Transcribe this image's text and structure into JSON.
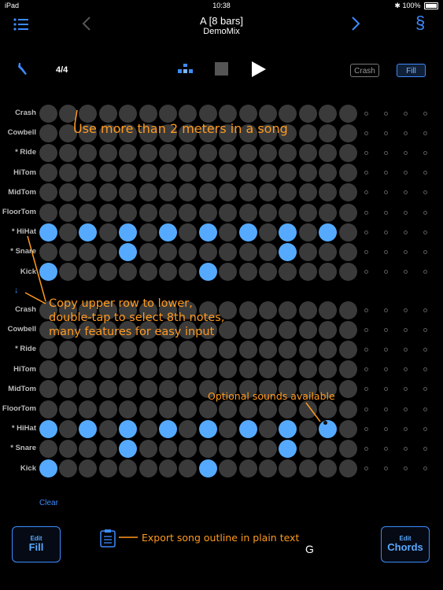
{
  "status_bar": {
    "carrier": "iPad",
    "time": "10:38",
    "battery": "100%"
  },
  "header": {
    "title": "A  [8 bars]",
    "subtitle": "DemoMix",
    "section_icon": "§"
  },
  "toolbar": {
    "meter": "4/4",
    "crash_label": "Crash",
    "fill_label": "Fill"
  },
  "grid": {
    "section1": {
      "labels": [
        "Crash",
        "Cowbell",
        "* Ride",
        "HiTom",
        "MidTom",
        "FloorTom",
        "* HiHat",
        "* Snare",
        "Kick"
      ],
      "on": {
        "6": [
          0,
          2,
          4,
          6,
          8,
          10,
          12,
          14
        ],
        "7": [
          4,
          12
        ],
        "8": [
          0,
          8
        ]
      }
    },
    "section2": {
      "labels": [
        "Crash",
        "Cowbell",
        "* Ride",
        "HiTom",
        "MidTom",
        "FloorTom",
        "* HiHat",
        "* Snare",
        "Kick"
      ],
      "on": {
        "6": [
          0,
          2,
          4,
          6,
          8,
          10,
          12,
          14
        ],
        "7": [
          4,
          12
        ],
        "8": [
          0,
          8
        ]
      }
    }
  },
  "annotations": {
    "meters": "Use more than 2 meters in a song",
    "copy_line1": "Copy upper row to lower,",
    "copy_line2": "double-tap to select 8th notes,",
    "copy_line3": "many features for easy input",
    "optional": "Optional sounds available",
    "export": "Export song outline in plain text"
  },
  "copy_arrow": "↓",
  "clear_label": "Clear",
  "bottom": {
    "edit_fill_small": "Edit",
    "edit_fill_big": "Fill",
    "edit_chords_small": "Edit",
    "edit_chords_big": "Chords",
    "key_label": "G"
  },
  "colors": {
    "accent": "#3d8bff",
    "active_step": "#55aaff",
    "inactive_step": "#3a3a3a",
    "annotation": "#ff9a1f"
  }
}
